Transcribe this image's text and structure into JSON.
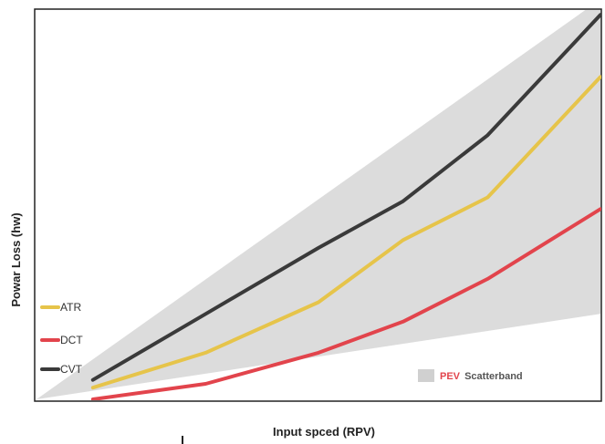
{
  "chart_data": {
    "type": "line",
    "title": "",
    "xlabel": "Input spced (RPV)",
    "ylabel": "Powar Loss (hw)",
    "xlim": [
      0,
      100
    ],
    "ylim": [
      0,
      100
    ],
    "x": [
      10,
      30,
      50,
      65,
      80,
      100
    ],
    "series": [
      {
        "name": "ATR",
        "color": "#e6c44a",
        "values": [
          3,
          12,
          25,
          41,
          52,
          83
        ]
      },
      {
        "name": "DCT",
        "color": "#e2444c",
        "values": [
          0,
          4,
          12,
          20,
          31,
          49
        ]
      },
      {
        "name": "CVT",
        "color": "#3a3a3a",
        "values": [
          5,
          22,
          39,
          51,
          68,
          99
        ]
      }
    ],
    "band": {
      "label_prefix": "PEV",
      "label_suffix": "Scatterband",
      "color": "#d6d6d6",
      "x": [
        0,
        100
      ],
      "lower": [
        0,
        22
      ],
      "upper": [
        0,
        103
      ]
    },
    "grid": false,
    "legend_position": "bottom-left"
  }
}
